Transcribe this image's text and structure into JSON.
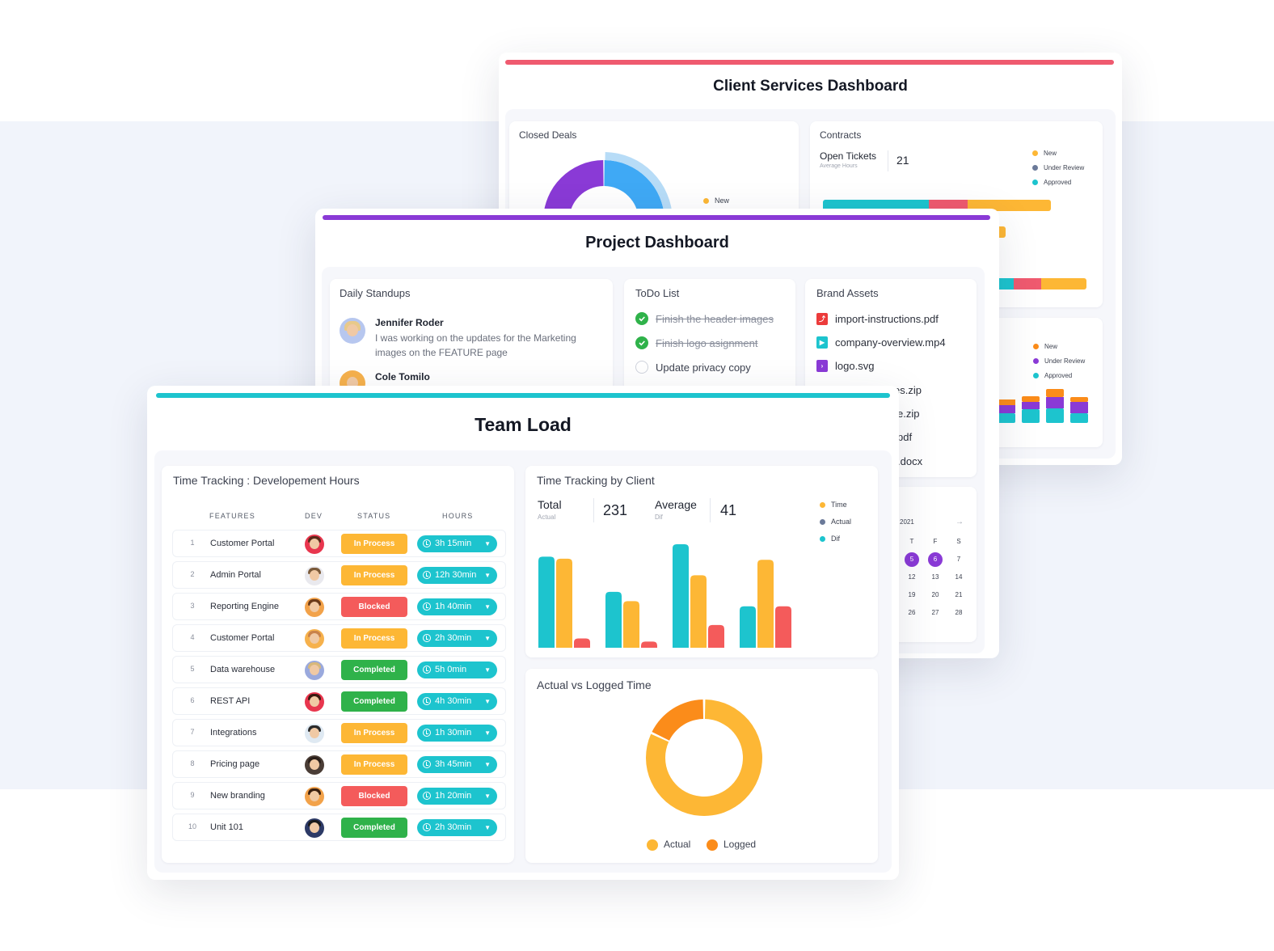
{
  "colors": {
    "red": "#ef5a6f",
    "purple": "#8a3ad6",
    "teal": "#1dc4ce",
    "orange": "#fdb735",
    "dark_orange": "#fb8c1a",
    "blue": "#3fa9f5",
    "slate": "#6b7a99",
    "green": "#2fb24a",
    "coral": "#f45b5b"
  },
  "client_dashboard": {
    "title": "Client Services Dashboard",
    "closed_deals": {
      "title": "Closed Deals",
      "legend": [
        "New"
      ]
    },
    "contracts": {
      "title": "Contracts",
      "open_tickets_label": "Open Tickets",
      "open_tickets_sub": "Average Hours",
      "open_tickets_value": "21",
      "legend": [
        "New",
        "Under Review",
        "Approved"
      ]
    },
    "lower_legend": [
      "New",
      "Under Review",
      "Approved"
    ]
  },
  "project_dashboard": {
    "title": "Project Dashboard",
    "standups": {
      "title": "Daily Standups",
      "entries": [
        {
          "name": "Jennifer Roder",
          "text": "I was working on the updates for the Marketing images on the FEATURE page"
        },
        {
          "name": "Cole Tomilo",
          "text": ""
        }
      ]
    },
    "todo": {
      "title": "ToDo List",
      "items": [
        {
          "text": "Finish the header images",
          "done": true
        },
        {
          "text": "Finish logo asignment",
          "done": true
        },
        {
          "text": "Update privacy copy",
          "done": false
        }
      ]
    },
    "assets": {
      "title": "Brand Assets",
      "files": [
        {
          "name": "import-instructions.pdf",
          "icon": "pdf-icon"
        },
        {
          "name": "company-overview.mp4",
          "icon": "video-icon"
        },
        {
          "name": "logo.svg",
          "icon": "svg-icon"
        }
      ],
      "partial_files": [
        "es.zip",
        "e.zip",
        "pdf",
        ".docx"
      ]
    },
    "calendar": {
      "year": "2021",
      "arrow": "→",
      "headers": [
        "T",
        "F",
        "S"
      ],
      "rows": [
        [
          "5",
          "6",
          "7"
        ],
        [
          "12",
          "13",
          "14"
        ],
        [
          "19",
          "20",
          "21"
        ],
        [
          "26",
          "27",
          "28"
        ]
      ],
      "selected": [
        "5",
        "6"
      ]
    }
  },
  "team_load": {
    "title": "Team Load",
    "tracking": {
      "title": "Time Tracking : Developement Hours",
      "columns": [
        "FEATURES",
        "DEV",
        "STATUS",
        "HOURS"
      ],
      "rows": [
        {
          "num": "1",
          "feature": "Customer Portal",
          "status": "In Process",
          "hours": "3h 15min"
        },
        {
          "num": "2",
          "feature": "Admin Portal",
          "status": "In Process",
          "hours": "12h 30min"
        },
        {
          "num": "3",
          "feature": "Reporting Engine",
          "status": "Blocked",
          "hours": "1h 40min"
        },
        {
          "num": "4",
          "feature": "Customer Portal",
          "status": "In Process",
          "hours": "2h 30min"
        },
        {
          "num": "5",
          "feature": "Data warehouse",
          "status": "Completed",
          "hours": "5h 0min"
        },
        {
          "num": "6",
          "feature": "REST API",
          "status": "Completed",
          "hours": "4h 30min"
        },
        {
          "num": "7",
          "feature": "Integrations",
          "status": "In Process",
          "hours": "1h 30min"
        },
        {
          "num": "8",
          "feature": "Pricing page",
          "status": "In Process",
          "hours": "3h 45min"
        },
        {
          "num": "9",
          "feature": "New branding",
          "status": "Blocked",
          "hours": "1h 20min"
        },
        {
          "num": "10",
          "feature": "Unit 101",
          "status": "Completed",
          "hours": "2h 30min"
        }
      ]
    },
    "by_client": {
      "title": "Time Tracking by Client",
      "total_label": "Total",
      "total_sub": "Actual",
      "total_value": "231",
      "average_label": "Average",
      "average_sub": "Dif",
      "average_value": "41",
      "legend": [
        "Time",
        "Actual",
        "Dif"
      ]
    },
    "actual_vs_logged": {
      "title": "Actual vs Logged Time",
      "legend": [
        "Actual",
        "Logged"
      ]
    }
  },
  "chart_data": [
    {
      "type": "bar",
      "title": "Time Tracking by Client",
      "categories": [
        "",
        "",
        "",
        ""
      ],
      "series": [
        {
          "name": "Actual",
          "values": [
            88,
            54,
            100,
            40
          ]
        },
        {
          "name": "Time",
          "values": [
            86,
            45,
            70,
            85
          ]
        },
        {
          "name": "Dif",
          "values": [
            9,
            6,
            22,
            40
          ]
        }
      ],
      "ylim": [
        0,
        100
      ]
    },
    {
      "type": "pie",
      "title": "Actual vs Logged Time",
      "donut": true,
      "labels": [
        "Actual",
        "Logged"
      ],
      "values": [
        82,
        18
      ]
    },
    {
      "type": "pie",
      "title": "Closed Deals",
      "donut": true,
      "labels": [
        "",
        ""
      ],
      "values": [
        50,
        50
      ]
    }
  ]
}
